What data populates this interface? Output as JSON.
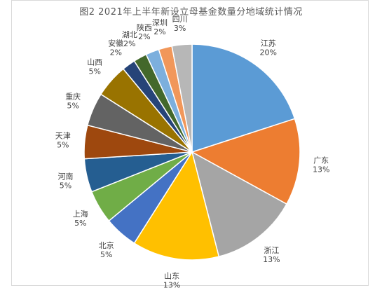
{
  "chart_data": {
    "type": "pie",
    "title": "图2 2021年上半年新设立母基金数量分地域统计情况",
    "slices": [
      {
        "label": "江苏",
        "value": 20,
        "pct": "20%",
        "color": "#5b9bd5"
      },
      {
        "label": "广东",
        "value": 13,
        "pct": "13%",
        "color": "#ed7d31"
      },
      {
        "label": "浙江",
        "value": 13,
        "pct": "13%",
        "color": "#a5a5a5"
      },
      {
        "label": "山东",
        "value": 13,
        "pct": "13%",
        "color": "#ffc000"
      },
      {
        "label": "北京",
        "value": 5,
        "pct": "5%",
        "color": "#4472c4"
      },
      {
        "label": "上海",
        "value": 5,
        "pct": "5%",
        "color": "#70ad47"
      },
      {
        "label": "河南",
        "value": 5,
        "pct": "5%",
        "color": "#255e91"
      },
      {
        "label": "天津",
        "value": 5,
        "pct": "5%",
        "color": "#9e480e"
      },
      {
        "label": "重庆",
        "value": 5,
        "pct": "5%",
        "color": "#636363"
      },
      {
        "label": "山西",
        "value": 5,
        "pct": "5%",
        "color": "#997300"
      },
      {
        "label": "安徽",
        "value": 2,
        "pct": "2%",
        "color": "#264478"
      },
      {
        "label": "湖北",
        "value": 2,
        "pct": "2%",
        "color": "#43682b"
      },
      {
        "label": "陕西",
        "value": 2,
        "pct": "2%",
        "color": "#7cafdd"
      },
      {
        "label": "深圳",
        "value": 2,
        "pct": "2%",
        "color": "#f1975a"
      },
      {
        "label": "四川",
        "value": 3,
        "pct": "3%",
        "color": "#b7b7b7"
      }
    ]
  }
}
